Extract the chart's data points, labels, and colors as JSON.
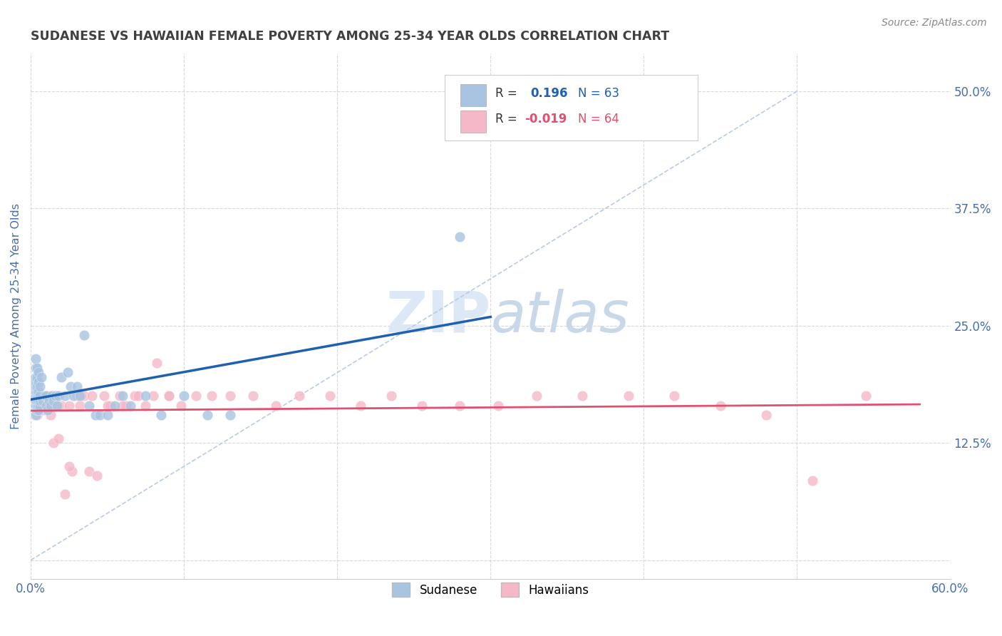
{
  "title": "SUDANESE VS HAWAIIAN FEMALE POVERTY AMONG 25-34 YEAR OLDS CORRELATION CHART",
  "source": "Source: ZipAtlas.com",
  "ylabel": "Female Poverty Among 25-34 Year Olds",
  "xlim": [
    0.0,
    0.6
  ],
  "ylim": [
    -0.02,
    0.54
  ],
  "xticks": [
    0.0,
    0.1,
    0.2,
    0.3,
    0.4,
    0.5,
    0.6
  ],
  "yticks": [
    0.0,
    0.125,
    0.25,
    0.375,
    0.5
  ],
  "sudanese_color": "#a8c4e0",
  "hawaiian_color": "#f4b8c8",
  "sudanese_line_color": "#2060b0",
  "hawaiian_line_color": "#e05070",
  "diagonal_color": "#b8cce4",
  "title_color": "#404040",
  "axis_label_color": "#4a6fa5",
  "tick_label_color": "#4a6fa5",
  "grid_color": "#d8d8d8",
  "sudanese_x": [
    0.003,
    0.003,
    0.003,
    0.003,
    0.003,
    0.003,
    0.003,
    0.003,
    0.003,
    0.003,
    0.004,
    0.004,
    0.004,
    0.004,
    0.004,
    0.004,
    0.004,
    0.004,
    0.005,
    0.005,
    0.005,
    0.005,
    0.005,
    0.005,
    0.005,
    0.006,
    0.006,
    0.006,
    0.006,
    0.007,
    0.008,
    0.009,
    0.01,
    0.01,
    0.011,
    0.012,
    0.013,
    0.014,
    0.015,
    0.016,
    0.017,
    0.018,
    0.02,
    0.022,
    0.024,
    0.026,
    0.028,
    0.03,
    0.032,
    0.035,
    0.038,
    0.042,
    0.045,
    0.05,
    0.055,
    0.06,
    0.065,
    0.075,
    0.085,
    0.1,
    0.115,
    0.13,
    0.28
  ],
  "sudanese_y": [
    0.155,
    0.165,
    0.17,
    0.175,
    0.18,
    0.185,
    0.19,
    0.195,
    0.205,
    0.215,
    0.16,
    0.165,
    0.17,
    0.175,
    0.18,
    0.185,
    0.195,
    0.205,
    0.16,
    0.165,
    0.17,
    0.175,
    0.18,
    0.19,
    0.2,
    0.165,
    0.17,
    0.175,
    0.185,
    0.195,
    0.17,
    0.175,
    0.165,
    0.175,
    0.16,
    0.17,
    0.165,
    0.175,
    0.17,
    0.175,
    0.165,
    0.175,
    0.195,
    0.175,
    0.2,
    0.185,
    0.175,
    0.185,
    0.175,
    0.24,
    0.165,
    0.155,
    0.155,
    0.155,
    0.165,
    0.175,
    0.165,
    0.175,
    0.155,
    0.175,
    0.155,
    0.155,
    0.345
  ],
  "hawaiian_x": [
    0.004,
    0.004,
    0.004,
    0.005,
    0.005,
    0.006,
    0.007,
    0.008,
    0.009,
    0.01,
    0.012,
    0.013,
    0.014,
    0.015,
    0.016,
    0.018,
    0.02,
    0.022,
    0.025,
    0.027,
    0.03,
    0.032,
    0.035,
    0.038,
    0.04,
    0.043,
    0.048,
    0.052,
    0.058,
    0.062,
    0.068,
    0.075,
    0.082,
    0.09,
    0.098,
    0.108,
    0.118,
    0.13,
    0.145,
    0.16,
    0.175,
    0.195,
    0.215,
    0.235,
    0.255,
    0.28,
    0.305,
    0.33,
    0.36,
    0.39,
    0.42,
    0.45,
    0.48,
    0.51,
    0.545,
    0.05,
    0.06,
    0.07,
    0.08,
    0.09,
    0.025,
    0.033,
    0.018,
    0.013
  ],
  "hawaiian_y": [
    0.165,
    0.17,
    0.155,
    0.165,
    0.17,
    0.16,
    0.165,
    0.16,
    0.165,
    0.16,
    0.165,
    0.155,
    0.165,
    0.125,
    0.165,
    0.13,
    0.165,
    0.07,
    0.165,
    0.095,
    0.175,
    0.165,
    0.175,
    0.095,
    0.175,
    0.09,
    0.175,
    0.165,
    0.175,
    0.165,
    0.175,
    0.165,
    0.21,
    0.175,
    0.165,
    0.175,
    0.175,
    0.175,
    0.175,
    0.165,
    0.175,
    0.175,
    0.165,
    0.175,
    0.165,
    0.165,
    0.165,
    0.175,
    0.175,
    0.175,
    0.175,
    0.165,
    0.155,
    0.085,
    0.175,
    0.165,
    0.165,
    0.175,
    0.175,
    0.175,
    0.1,
    0.175,
    0.165,
    0.175
  ]
}
